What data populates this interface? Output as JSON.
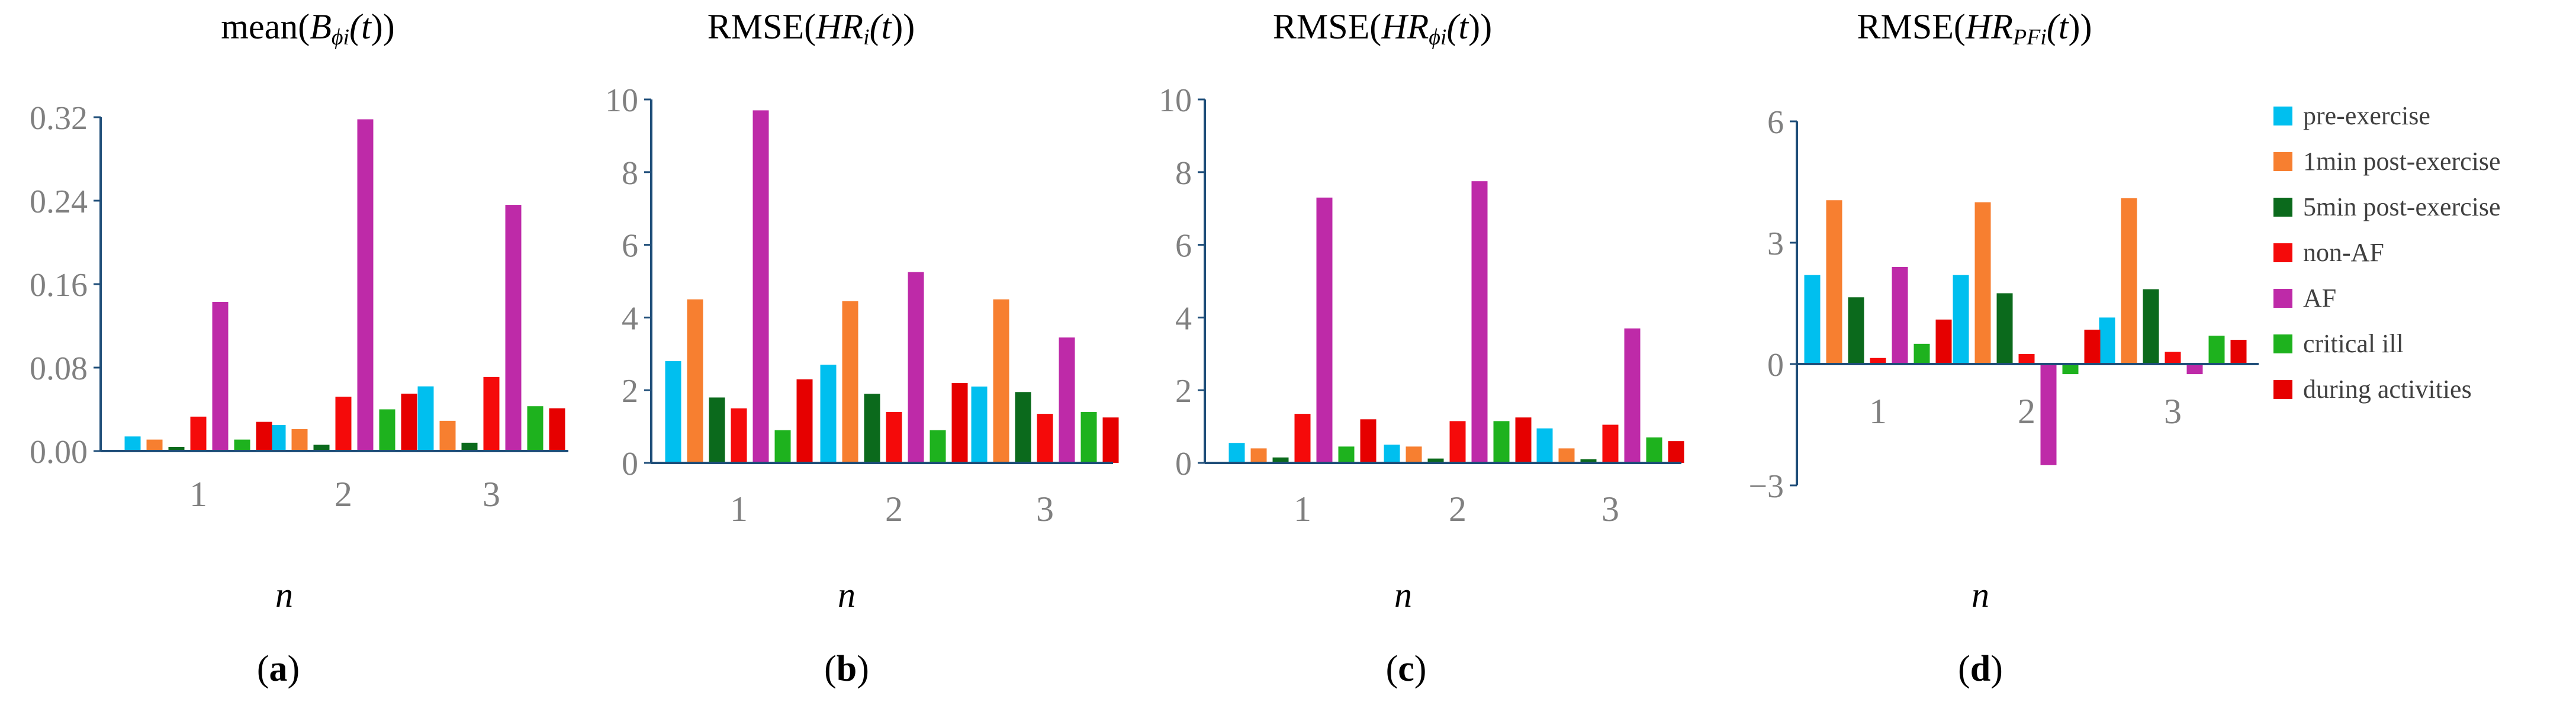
{
  "series_names": [
    "pre-exercise",
    "1min post-exercise",
    "5min post-exercise",
    "non-AF",
    "AF",
    "critical ill",
    "during activities"
  ],
  "series_colors": [
    "#00BFEF",
    "#F77F30",
    "#0B6A1C",
    "#F50A0A",
    "#BE2AA8",
    "#1EB21E",
    "#E60000"
  ],
  "chart_data": [
    {
      "type": "bar",
      "panel": "(a)",
      "title": {
        "pre": "mean(",
        "var": "B",
        "sub": "ϕi",
        "post": "(t))"
      },
      "xlabel": "n",
      "categories": [
        "1",
        "2",
        "3"
      ],
      "ylim": [
        0,
        0.32
      ],
      "yticks": [
        "0.00",
        "0.08",
        "0.16",
        "0.24",
        "0.32"
      ],
      "series": [
        {
          "name": "pre-exercise",
          "values": [
            0.014,
            0.025,
            0.062
          ]
        },
        {
          "name": "1min post-exercise",
          "values": [
            0.011,
            0.021,
            0.029
          ]
        },
        {
          "name": "5min post-exercise",
          "values": [
            0.004,
            0.006,
            0.008
          ]
        },
        {
          "name": "non-AF",
          "values": [
            0.033,
            0.052,
            0.071
          ]
        },
        {
          "name": "AF",
          "values": [
            0.143,
            0.318,
            0.236
          ]
        },
        {
          "name": "critical ill",
          "values": [
            0.011,
            0.04,
            0.043
          ]
        },
        {
          "name": "during activities",
          "values": [
            0.028,
            0.055,
            0.041
          ]
        }
      ]
    },
    {
      "type": "bar",
      "panel": "(b)",
      "title": {
        "pre": "RMSE(",
        "var": "HR",
        "sub": "i",
        "post": "(t))"
      },
      "xlabel": "n",
      "categories": [
        "1",
        "2",
        "3"
      ],
      "ylim": [
        0,
        10
      ],
      "yticks": [
        "0",
        "2",
        "4",
        "6",
        "8",
        "10"
      ],
      "series": [
        {
          "name": "pre-exercise",
          "values": [
            2.8,
            2.7,
            2.1
          ]
        },
        {
          "name": "1min post-exercise",
          "values": [
            4.5,
            4.45,
            4.5
          ]
        },
        {
          "name": "5min post-exercise",
          "values": [
            1.8,
            1.9,
            1.95
          ]
        },
        {
          "name": "non-AF",
          "values": [
            1.5,
            1.4,
            1.35
          ]
        },
        {
          "name": "AF",
          "values": [
            9.7,
            5.25,
            3.45
          ]
        },
        {
          "name": "critical ill",
          "values": [
            0.9,
            0.9,
            1.4
          ]
        },
        {
          "name": "during activities",
          "values": [
            2.3,
            2.2,
            1.25
          ]
        }
      ]
    },
    {
      "type": "bar",
      "panel": "(c)",
      "title": {
        "pre": "RMSE(",
        "var": "HR",
        "sub": "ϕi",
        "post": "(t))"
      },
      "xlabel": "n",
      "categories": [
        "1",
        "2",
        "3"
      ],
      "ylim": [
        0,
        10
      ],
      "yticks": [
        "0",
        "2",
        "4",
        "6",
        "8",
        "10"
      ],
      "series": [
        {
          "name": "pre-exercise",
          "values": [
            0.55,
            0.5,
            0.95
          ]
        },
        {
          "name": "1min post-exercise",
          "values": [
            0.4,
            0.45,
            0.4
          ]
        },
        {
          "name": "5min post-exercise",
          "values": [
            0.15,
            0.12,
            0.1
          ]
        },
        {
          "name": "non-AF",
          "values": [
            1.35,
            1.15,
            1.05
          ]
        },
        {
          "name": "AF",
          "values": [
            7.3,
            7.75,
            3.7
          ]
        },
        {
          "name": "critical ill",
          "values": [
            0.45,
            1.15,
            0.7
          ]
        },
        {
          "name": "during activities",
          "values": [
            1.2,
            1.25,
            0.6
          ]
        }
      ]
    },
    {
      "type": "bar",
      "panel": "(d)",
      "title": {
        "pre": "RMSE(",
        "var": "HR",
        "sub": "PFi",
        "post": "(t))"
      },
      "xlabel": "n",
      "categories": [
        "1",
        "2",
        "3"
      ],
      "ylim": [
        -3,
        6
      ],
      "yticks": [
        "−3",
        "0",
        "3",
        "6"
      ],
      "series": [
        {
          "name": "pre-exercise",
          "values": [
            2.2,
            2.2,
            1.15
          ]
        },
        {
          "name": "1min post-exercise",
          "values": [
            4.05,
            4.0,
            4.1
          ]
        },
        {
          "name": "5min post-exercise",
          "values": [
            1.65,
            1.75,
            1.85
          ]
        },
        {
          "name": "non-AF",
          "values": [
            0.15,
            0.25,
            0.3
          ]
        },
        {
          "name": "AF",
          "values": [
            2.4,
            -2.5,
            -0.25
          ]
        },
        {
          "name": "critical ill",
          "values": [
            0.5,
            -0.25,
            0.7
          ]
        },
        {
          "name": "during activities",
          "values": [
            1.1,
            0.85,
            0.6
          ]
        }
      ]
    }
  ]
}
